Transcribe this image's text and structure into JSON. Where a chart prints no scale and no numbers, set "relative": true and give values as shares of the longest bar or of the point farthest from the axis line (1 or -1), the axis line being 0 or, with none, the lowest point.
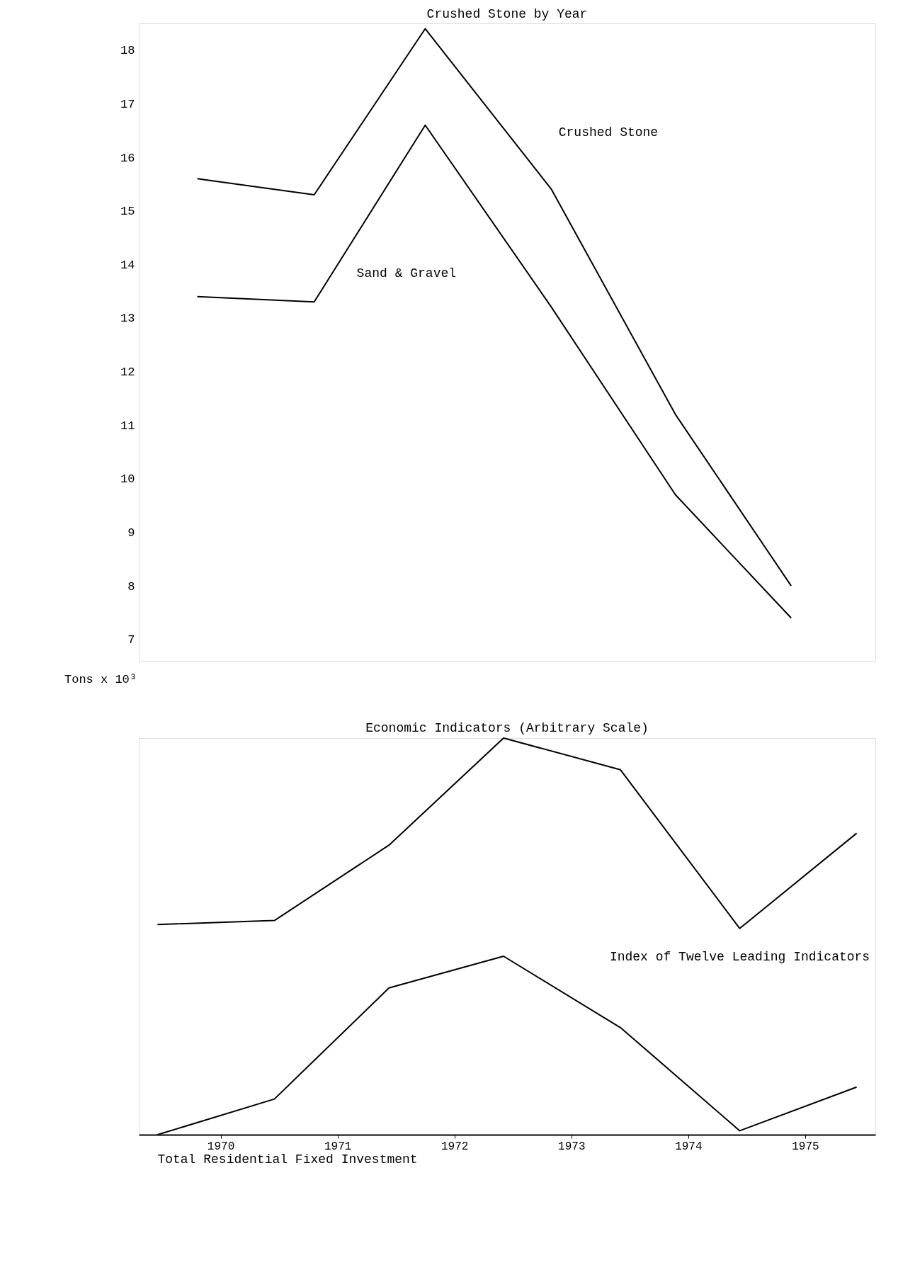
{
  "chart_data": [
    {
      "type": "line",
      "title": "Crushed Stone by Year",
      "ylabel": "Tons x 10³",
      "xlim": [
        1969.3,
        1975.6
      ],
      "ylim": [
        6.6,
        18.5
      ],
      "yticks": [
        7,
        8,
        9,
        10,
        11,
        12,
        13,
        14,
        15,
        16,
        17,
        18
      ],
      "tick_labels": "y",
      "grid": false,
      "series": [
        {
          "name": "Crushed Stone",
          "color": "#000000",
          "x": [
            1969.8,
            1970.8,
            1971.75,
            1972.83,
            1973.89,
            1974.88
          ],
          "values": [
            15.6,
            15.3,
            18.4,
            15.4,
            11.2,
            8.0
          ]
        },
        {
          "name": "Sand & Gravel",
          "color": "#000000",
          "x": [
            1969.8,
            1970.8,
            1971.75,
            1972.83,
            1973.89,
            1974.88
          ],
          "values": [
            13.4,
            13.3,
            16.6,
            13.2,
            9.7,
            7.4
          ]
        }
      ]
    },
    {
      "type": "line",
      "title": "Economic Indicators (Arbitrary Scale)",
      "relative": true,
      "xlim": [
        1969.3,
        1975.6
      ],
      "xticks": [
        1970,
        1971,
        1972,
        1973,
        1974,
        1975
      ],
      "tick_labels": "x",
      "grid": false,
      "series": [
        {
          "name": "Index of Twelve Leading Indicators",
          "color": "#000000",
          "x": [
            1969.46,
            1970.46,
            1971.44,
            1972.42,
            1973.42,
            1974.44,
            1975.44
          ],
          "values": [
            0.53,
            0.54,
            0.73,
            1,
            0.92,
            0.52,
            0.76
          ]
        },
        {
          "name": "Total Residential Fixed Investment",
          "color": "#000000",
          "x": [
            1969.46,
            1970.46,
            1971.44,
            1972.42,
            1973.42,
            1974.44,
            1975.44
          ],
          "values": [
            0,
            0.09,
            0.37,
            0.45,
            0.27,
            0.01,
            0.12
          ]
        }
      ]
    }
  ]
}
